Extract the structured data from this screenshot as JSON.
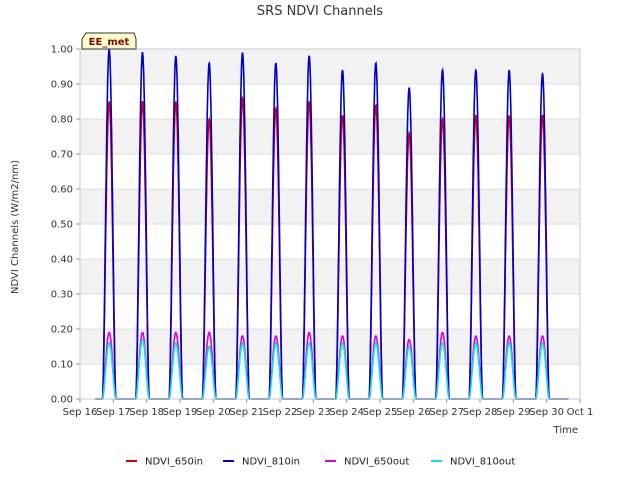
{
  "chart_data": {
    "type": "line",
    "title": "SRS NDVI Channels",
    "xlabel": "Time",
    "ylabel": "NDVI Channels (W/m2/nm)",
    "ylim": [
      0,
      1.0
    ],
    "xlim": [
      "2023-09-16",
      "2023-10-01"
    ],
    "yticks": [
      "0.00",
      "0.10",
      "0.20",
      "0.30",
      "0.40",
      "0.50",
      "0.60",
      "0.70",
      "0.80",
      "0.90",
      "1.00"
    ],
    "xticks": [
      "Sep 16",
      "Sep 17",
      "Sep 18",
      "Sep 19",
      "Sep 20",
      "Sep 21",
      "Sep 22",
      "Sep 23",
      "Sep 24",
      "Sep 25",
      "Sep 26",
      "Sep 27",
      "Sep 28",
      "Sep 29",
      "Sep 30",
      "Oct 1"
    ],
    "grid": true,
    "legend_position": "bottom",
    "annotation": "EE_met",
    "day_peak_times": [
      "2023-09-16T21:00",
      "2023-09-17T21:00",
      "2023-09-18T21:00",
      "2023-09-19T21:00",
      "2023-09-20T21:00",
      "2023-09-21T21:00",
      "2023-09-22T21:00",
      "2023-09-23T21:00",
      "2023-09-24T21:00",
      "2023-09-25T21:00",
      "2023-09-26T21:00",
      "2023-09-27T21:00",
      "2023-09-28T21:00",
      "2023-09-29T21:00"
    ],
    "series": [
      {
        "name": "NDVI_650in",
        "color": "#dd0000",
        "peaks": [
          0.85,
          0.85,
          0.85,
          0.8,
          0.86,
          0.83,
          0.85,
          0.81,
          0.84,
          0.76,
          0.8,
          0.81,
          0.81,
          0.81
        ]
      },
      {
        "name": "NDVI_810in",
        "color": "#0000cc",
        "peaks": [
          1.0,
          0.99,
          0.98,
          0.96,
          0.99,
          0.96,
          0.98,
          0.94,
          0.96,
          0.89,
          0.94,
          0.94,
          0.94,
          0.93
        ]
      },
      {
        "name": "NDVI_650out",
        "color": "#dd00dd",
        "peaks": [
          0.19,
          0.19,
          0.19,
          0.19,
          0.18,
          0.18,
          0.19,
          0.18,
          0.18,
          0.17,
          0.19,
          0.18,
          0.18,
          0.18
        ]
      },
      {
        "name": "NDVI_810out",
        "color": "#00e5e5",
        "peaks": [
          0.16,
          0.17,
          0.16,
          0.15,
          0.16,
          0.16,
          0.16,
          0.16,
          0.16,
          0.15,
          0.16,
          0.16,
          0.16,
          0.16
        ]
      }
    ]
  }
}
